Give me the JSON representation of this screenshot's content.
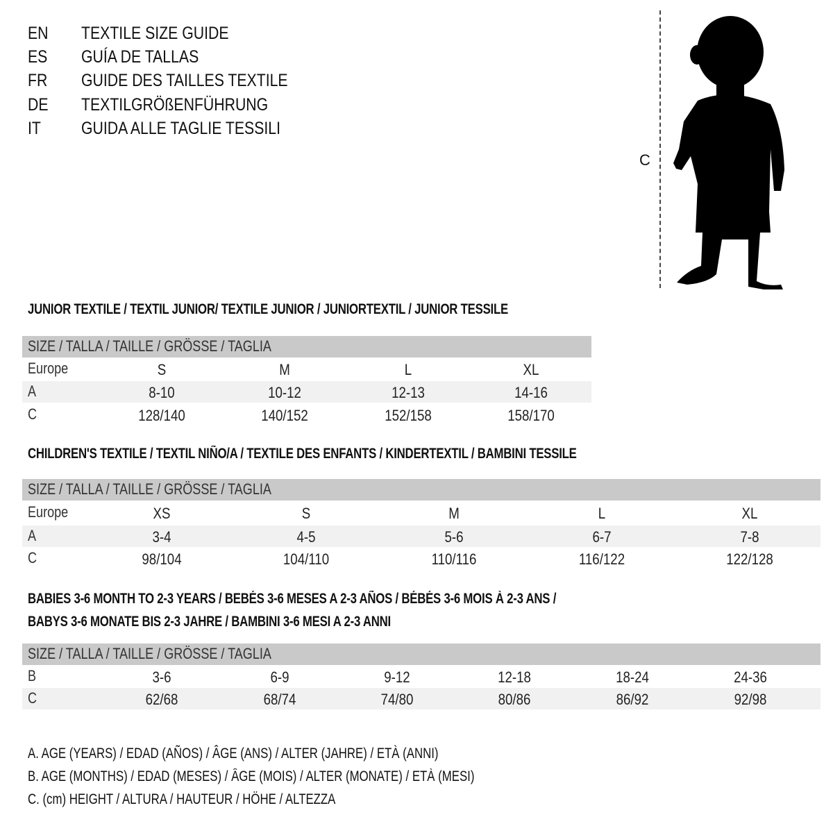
{
  "titles": [
    {
      "lang": "EN",
      "text": "TEXTILE SIZE GUIDE"
    },
    {
      "lang": "ES",
      "text": "GUÍA DE TALLAS"
    },
    {
      "lang": "FR",
      "text": "GUIDE DES TAILLES TEXTILE"
    },
    {
      "lang": "DE",
      "text": "TEXTILGRÖßENFÜHRUNG"
    },
    {
      "lang": "IT",
      "text": "GUIDA ALLE TAGLIE TESSILI"
    }
  ],
  "figure": {
    "measure_label": "C",
    "colors": {
      "silhouette": "#000000",
      "header_row": "#c9c9c9",
      "alt_row": "#f1f1f1"
    }
  },
  "junior": {
    "title": "JUNIOR TEXTILE / TEXTIL JUNIOR/ TEXTILE JUNIOR / JUNIORTEXTIL / JUNIOR TESSILE",
    "header": "SIZE / TALLA / TAILLE / GRÖSSE / TAGLIA",
    "rows": [
      {
        "label": "Europe",
        "values": [
          "S",
          "M",
          "L",
          "XL"
        ]
      },
      {
        "label": "A",
        "values": [
          "8-10",
          "10-12",
          "12-13",
          "14-16"
        ]
      },
      {
        "label": "C",
        "values": [
          "128/140",
          "140/152",
          "152/158",
          "158/170"
        ]
      }
    ]
  },
  "children": {
    "title": "CHILDREN'S TEXTILE / TEXTIL NIÑO/A / TEXTILE DES ENFANTS / KINDERTEXTIL / BAMBINI TESSILE",
    "header": "SIZE / TALLA / TAILLE / GRÖSSE / TAGLIA",
    "rows": [
      {
        "label": "Europe",
        "values": [
          "XS",
          "S",
          "M",
          "L",
          "XL"
        ]
      },
      {
        "label": "A",
        "values": [
          "3-4",
          "4-5",
          "5-6",
          "6-7",
          "7-8"
        ]
      },
      {
        "label": "C",
        "values": [
          "98/104",
          "104/110",
          "110/116",
          "116/122",
          "122/128"
        ]
      }
    ]
  },
  "babies": {
    "title_line1": "BABIES 3-6 MONTH TO 2-3 YEARS / BEBÉS 3-6 MESES A 2-3 AÑOS / BÉBÉS 3-6 MOIS À 2-3 ANS /",
    "title_line2": "BABYS 3-6 MONATE BIS 2-3 JAHRE / BAMBINI 3-6 MESI A 2-3 ANNI",
    "header": "SIZE / TALLA / TAILLE / GRÖSSE / TAGLIA",
    "rows": [
      {
        "label": "B",
        "values": [
          "3-6",
          "6-9",
          "9-12",
          "12-18",
          "18-24",
          "24-36"
        ]
      },
      {
        "label": "C",
        "values": [
          "62/68",
          "68/74",
          "74/80",
          "80/86",
          "86/92",
          "92/98"
        ]
      }
    ]
  },
  "legend": [
    "A. AGE (YEARS) / EDAD (AÑOS) / ÂGE (ANS) / ALTER (JAHRE) / ETÀ (ANNI)",
    "B. AGE (MONTHS) / EDAD (MESES) / ÂGE (MOIS) / ALTER (MONATE) / ETÀ (MESI)",
    "C. (cm) HEIGHT / ALTURA / HAUTEUR / HÖHE / ALTEZZA"
  ]
}
